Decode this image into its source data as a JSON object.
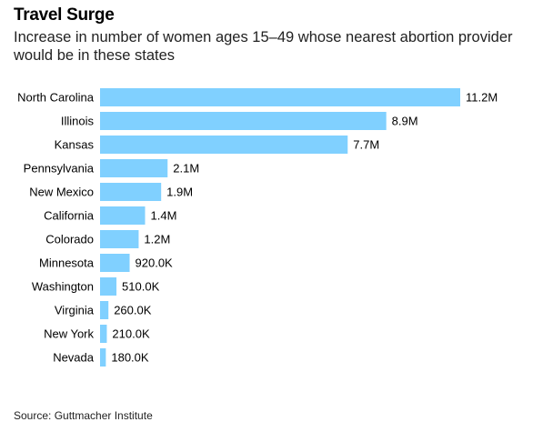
{
  "header": {
    "title": "Travel Surge",
    "subtitle": "Increase in number of women ages 15–49 whose nearest abortion provider would be in these states"
  },
  "footer": {
    "source": "Source: Guttmacher Institute"
  },
  "colors": {
    "bar": "#80d0ff",
    "text": "#000000"
  },
  "chart_data": {
    "type": "bar",
    "orientation": "horizontal",
    "title": "Travel Surge",
    "subtitle": "Increase in number of women ages 15–49 whose nearest abortion provider would be in these states",
    "categories": [
      "North Carolina",
      "Illinois",
      "Kansas",
      "Pennsylvania",
      "New Mexico",
      "California",
      "Colorado",
      "Minnesota",
      "Washington",
      "Virginia",
      "New York",
      "Nevada"
    ],
    "values": [
      11200000,
      8900000,
      7700000,
      2100000,
      1900000,
      1400000,
      1200000,
      920000,
      510000,
      260000,
      210000,
      180000
    ],
    "value_labels": [
      "11.2M",
      "8.9M",
      "7.7M",
      "2.1M",
      "1.9M",
      "1.4M",
      "1.2M",
      "920.0K",
      "510.0K",
      "260.0K",
      "210.0K",
      "180.0K"
    ],
    "xlim": [
      0,
      11200000
    ],
    "xlabel": "",
    "ylabel": "",
    "grid": false,
    "legend": "none"
  }
}
